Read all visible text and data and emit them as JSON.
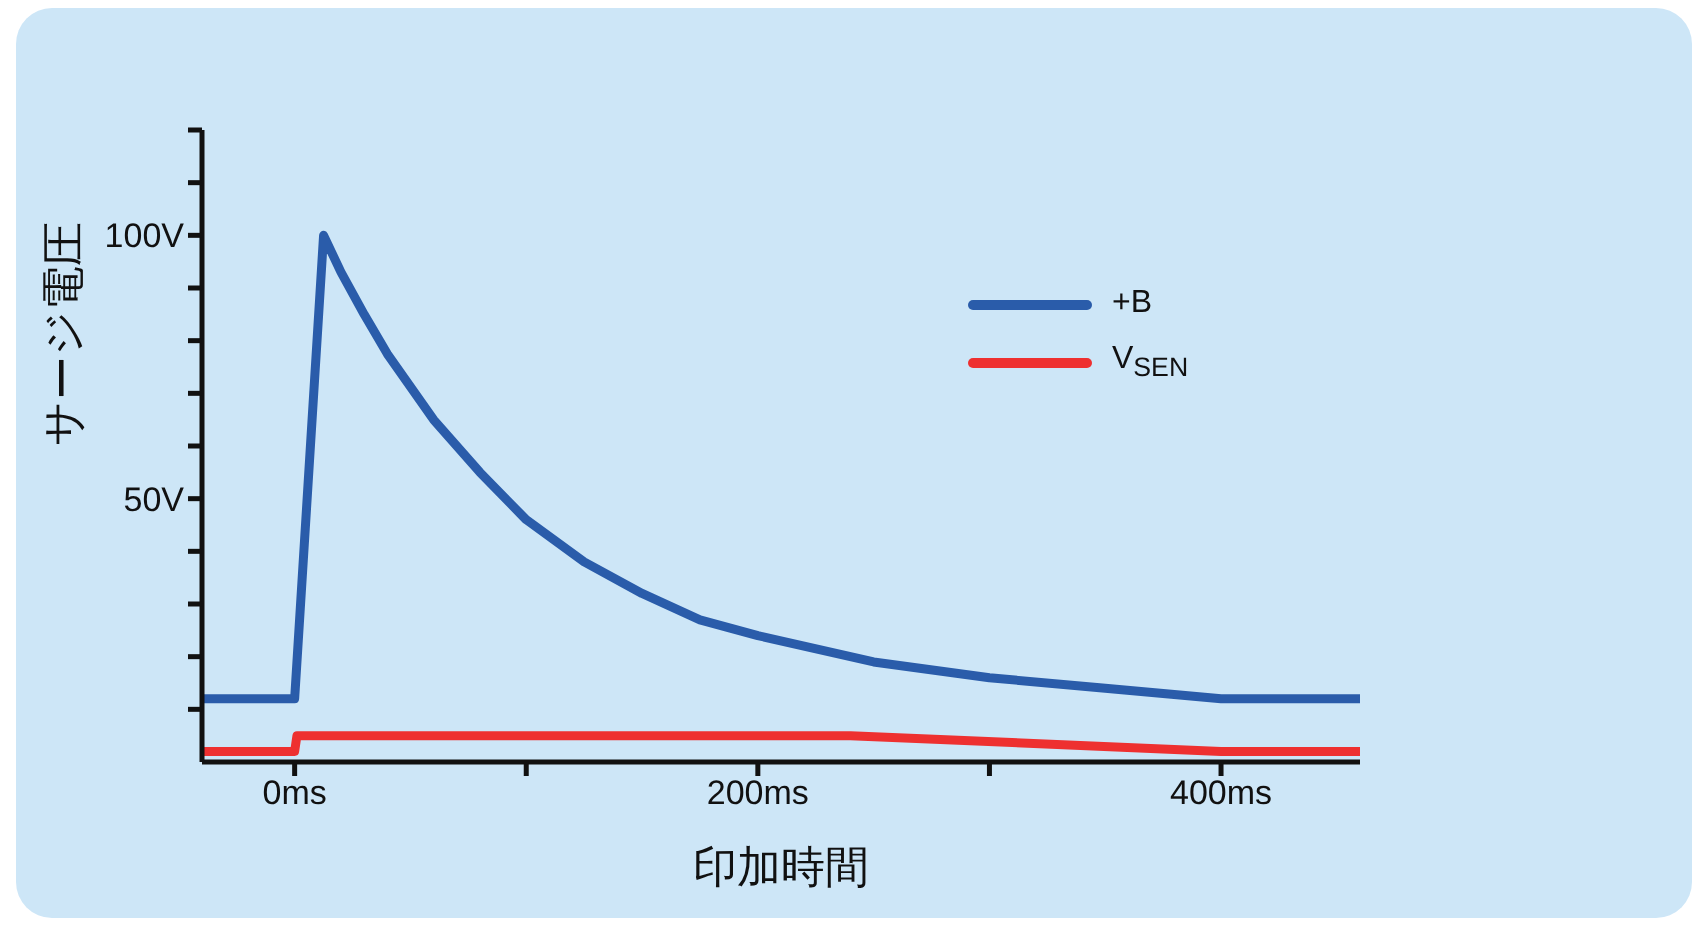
{
  "chart_data": {
    "type": "line",
    "xlabel": "印加時間",
    "ylabel": "サージ電圧",
    "xlim": [
      -40,
      460
    ],
    "ylim": [
      0,
      120
    ],
    "xticks": [
      {
        "value": 0,
        "label": "0ms"
      },
      {
        "value": 100,
        "label": null
      },
      {
        "value": 200,
        "label": "200ms"
      },
      {
        "value": 300,
        "label": null
      },
      {
        "value": 400,
        "label": "400ms"
      }
    ],
    "yticks": [
      {
        "value": 10,
        "label": null
      },
      {
        "value": 20,
        "label": null
      },
      {
        "value": 30,
        "label": null
      },
      {
        "value": 40,
        "label": null
      },
      {
        "value": 50,
        "label": "50V"
      },
      {
        "value": 60,
        "label": null
      },
      {
        "value": 70,
        "label": null
      },
      {
        "value": 80,
        "label": null
      },
      {
        "value": 90,
        "label": null
      },
      {
        "value": 100,
        "label": "100V"
      },
      {
        "value": 110,
        "label": null
      },
      {
        "value": 120,
        "label": null
      }
    ],
    "grid": false,
    "legend": "top right",
    "marker": "none",
    "line_style": "solid",
    "series": [
      {
        "name": "+B",
        "color": "#2a5caa",
        "x": [
          -40,
          0,
          12.5,
          20,
          30,
          40,
          60,
          80,
          100,
          125,
          150,
          175,
          200,
          250,
          300,
          350,
          400,
          460
        ],
        "values": [
          12,
          12,
          100,
          93,
          85,
          77.5,
          65,
          55,
          46,
          38,
          32,
          27,
          24,
          19,
          16,
          14,
          12,
          12
        ]
      },
      {
        "name": "V$_{SEN}$",
        "color": "#ee3030",
        "x": [
          -40,
          0,
          1,
          240,
          400,
          460
        ],
        "values": [
          2,
          2,
          5,
          5,
          2,
          2
        ]
      }
    ]
  }
}
